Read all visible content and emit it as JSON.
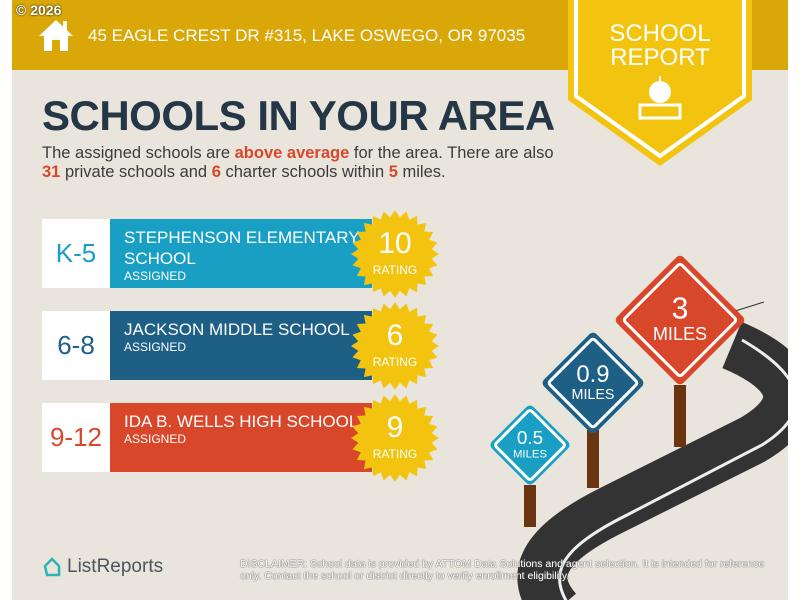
{
  "copyright": "© 2026",
  "address": "45 EAGLE CREST DR #315, LAKE OSWEGO, OR 97035",
  "badge": {
    "line1": "SCHOOL",
    "line2": "REPORT"
  },
  "title": "SCHOOLS IN YOUR AREA",
  "intro": {
    "p1": "The assigned schools are ",
    "highlight": "above average",
    "p2": " for the area. There are also ",
    "private": "31",
    "p3": " private schools and ",
    "charter": "6",
    "p4": " charter schools within ",
    "miles": "5",
    "p5": " miles."
  },
  "schools": [
    {
      "grade": "K-5",
      "name": "Stephenson Elementary School",
      "status": "ASSIGNED",
      "rating": "10",
      "rating_label": "RATING",
      "color": "#1a9fc4"
    },
    {
      "grade": "6-8",
      "name": "Jackson Middle School",
      "status": "ASSIGNED",
      "rating": "6",
      "rating_label": "RATING",
      "color": "#1e5f86"
    },
    {
      "grade": "9-12",
      "name": "Ida B. Wells High School",
      "status": "ASSIGNED",
      "rating": "9",
      "rating_label": "RATING",
      "color": "#d9472b"
    }
  ],
  "signs": [
    {
      "value": "0.5",
      "unit": "MILES",
      "color": "#1a9fc4"
    },
    {
      "value": "0.9",
      "unit": "MILES",
      "color": "#1e5f86"
    },
    {
      "value": "3",
      "unit": "MILES",
      "color": "#d9472b"
    }
  ],
  "footer": {
    "logo": "ListReports",
    "disclaimer_label": "DISCLAIMER:",
    "disclaimer": " School data is provided by ATTOM Data Solutions and agent selection. It is intended for reference only. Contact the school or district directly to verify enrollment eligibility."
  }
}
